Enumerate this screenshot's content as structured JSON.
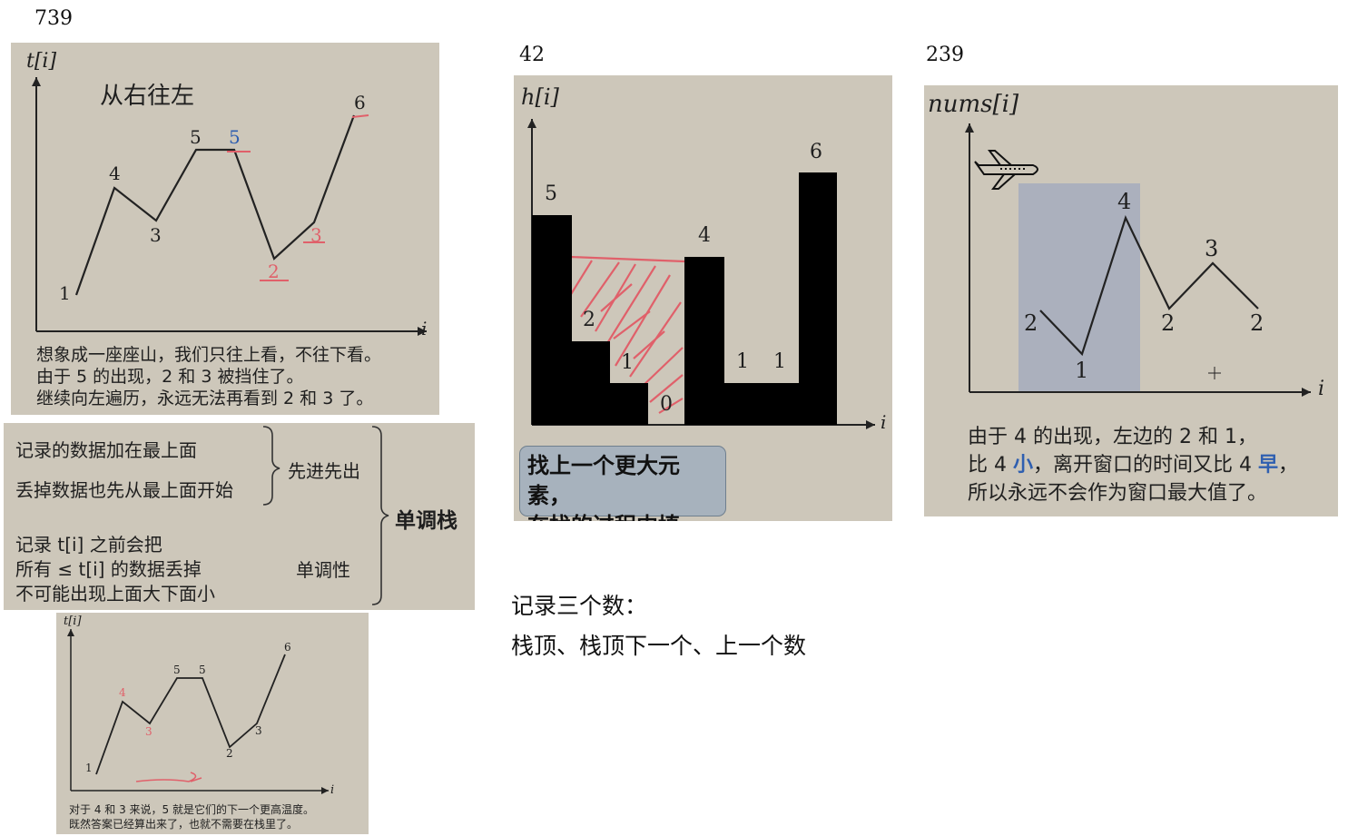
{
  "headings": {
    "h739": "739",
    "h42": "42",
    "h239": "239"
  },
  "panel739": {
    "ylabel": "t[i]",
    "xlabel": "i",
    "title": "从右往左",
    "points": [
      "1",
      "4",
      "3",
      "5",
      "5",
      "2",
      "3",
      "6"
    ],
    "caption": [
      "想象成一座座山，我们只往上看，不往下看。",
      "由于 5 的出现，2 和 3 被挡住了。",
      "继续向左遍历，永远无法再看到 2 和 3 了。"
    ]
  },
  "stack_notes": {
    "line1": "记录的数据加在最上面",
    "line2": "丢掉数据也先从最上面开始",
    "fifo": "先进先出",
    "mono_line1": "记录 t[i] 之前会把",
    "mono_line2": "所有 ≤ t[i] 的数据丢掉",
    "mono_line3": "不可能出现上面大下面小",
    "monotonic": "单调性",
    "stack": "单调栈"
  },
  "panel739b": {
    "ylabel": "t[i]",
    "xlabel": "i",
    "points": [
      "1",
      "4",
      "3",
      "5",
      "5",
      "2",
      "3",
      "6"
    ],
    "caption": [
      "对于 4 和 3 来说，5 就是它们的下一个更高温度。",
      "既然答案已经算出来了，也就不需要在栈里了。"
    ]
  },
  "panel42": {
    "ylabel": "h[i]",
    "xlabel": "i",
    "bars": [
      "5",
      "2",
      "1",
      "0",
      "4",
      "1",
      "1",
      "6"
    ],
    "callout_line1": "找上一个更大元素，",
    "callout_line2": "在找的过程中填坑。"
  },
  "bottom": {
    "line1": "记录三个数：",
    "line2": "栈顶、栈顶下一个、上一个数"
  },
  "panel239": {
    "ylabel": "nums[i]",
    "xlabel": "i",
    "points": [
      "2",
      "1",
      "4",
      "2",
      "3",
      "2"
    ],
    "caption_line1": "由于 4 的出现，左边的 2 和 1，",
    "caption_line2_a": "比 4 ",
    "caption_line2_small": "小",
    "caption_line2_b": "，离开窗口的时间又比 4 ",
    "caption_line2_early": "早",
    "caption_line2_c": "，",
    "caption_line3": "所以永远不会作为窗口最大值了。"
  },
  "colors": {
    "panel_bg": "#cdc7ba",
    "red": "#e0606a",
    "blue": "#2f5fb0",
    "window": "#a9afbd"
  }
}
